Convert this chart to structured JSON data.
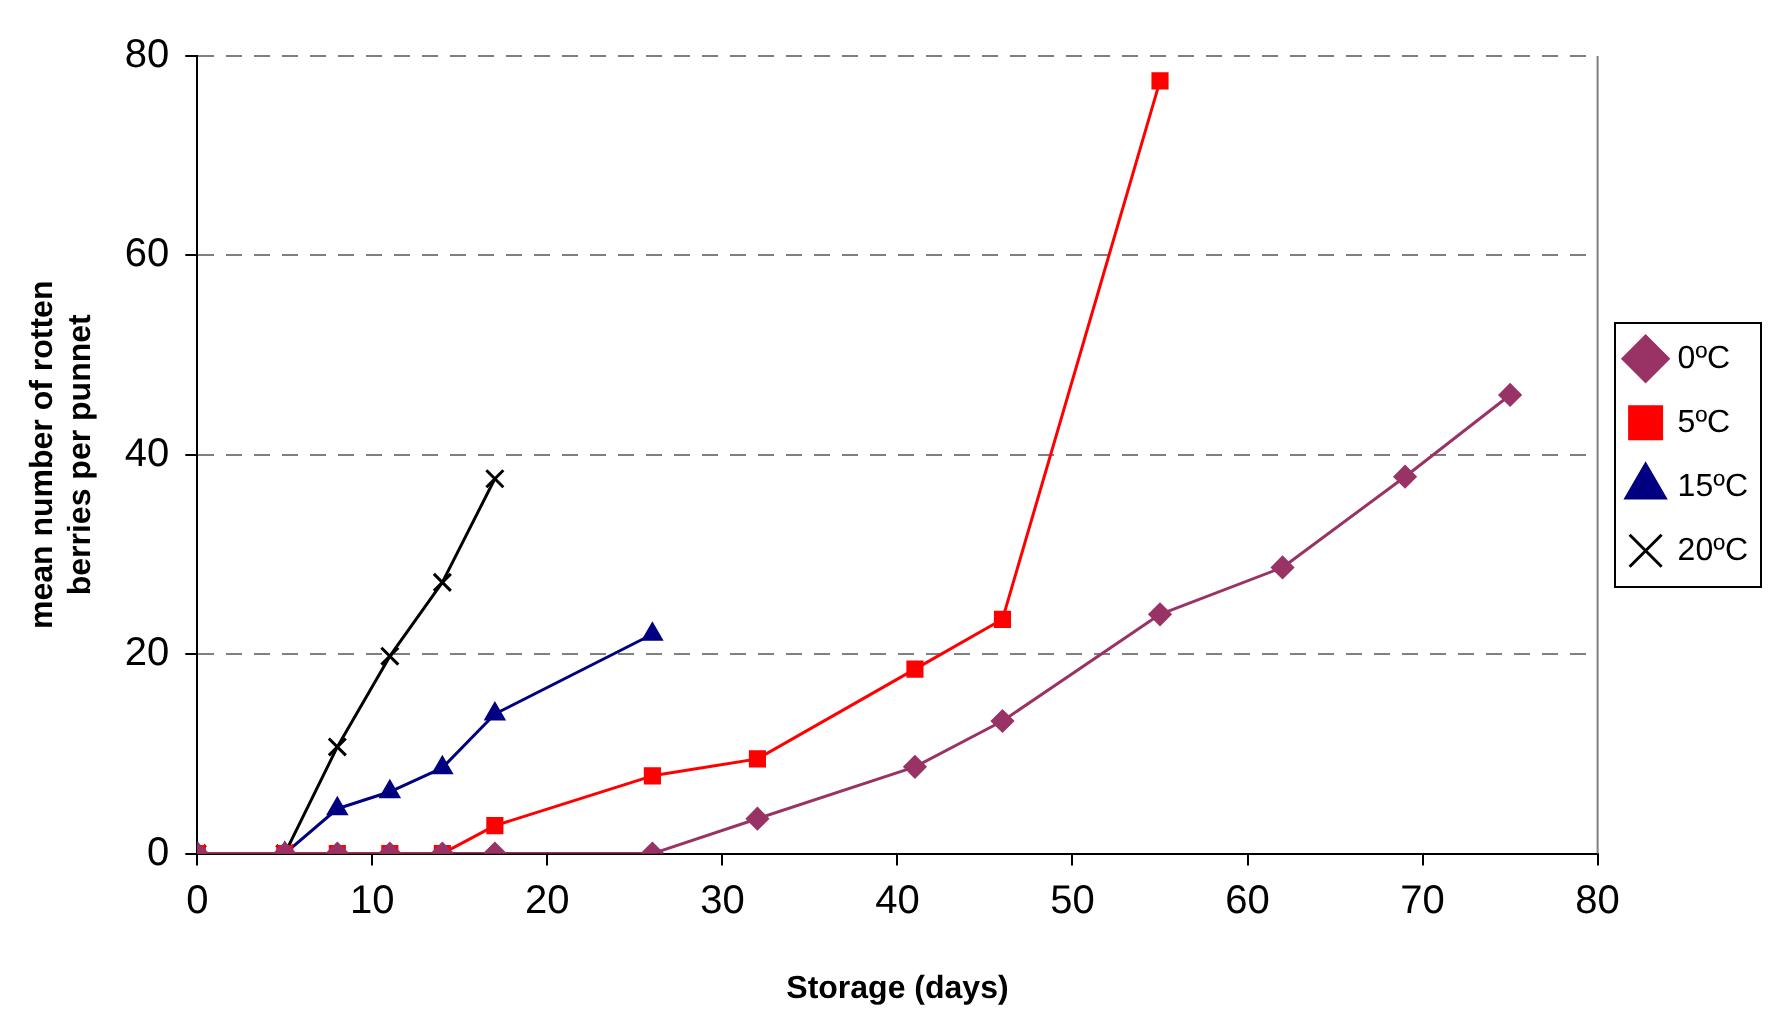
{
  "chart_data": {
    "type": "line",
    "xlabel": "Storage (days)",
    "ylabel": "mean number of rotten berries per punnet",
    "xlim": [
      0,
      80
    ],
    "xticks": [
      0,
      10,
      20,
      30,
      40,
      50,
      60,
      70,
      80
    ],
    "ylim": [
      0,
      80
    ],
    "yticks": [
      0,
      20,
      40,
      60,
      80
    ],
    "grid": "y",
    "legend": "right",
    "series": [
      {
        "name": "0ºC",
        "color": "#993366",
        "marker": "diamond",
        "x": [
          0,
          5,
          8,
          11,
          14,
          17,
          26,
          32,
          41,
          46,
          55,
          62,
          69,
          75
        ],
        "values": [
          0,
          0,
          0,
          0,
          0,
          0,
          0,
          3.5,
          8.7,
          13.3,
          24,
          28.7,
          37.8,
          46
        ]
      },
      {
        "name": "5ºC",
        "color": "#ff0000",
        "marker": "square",
        "x": [
          0,
          5,
          8,
          11,
          14,
          17,
          26,
          32,
          41,
          46,
          55
        ],
        "values": [
          0,
          0,
          0,
          0,
          0,
          2.8,
          7.8,
          9.5,
          18.5,
          23.5,
          77.5
        ]
      },
      {
        "name": "15ºC",
        "color": "#000080",
        "marker": "triangle",
        "x": [
          0,
          5,
          8,
          11,
          14,
          17,
          26
        ],
        "values": [
          0,
          0,
          4.5,
          6.2,
          8.6,
          14,
          22
        ]
      },
      {
        "name": "20ºC",
        "color": "#000000",
        "marker": "cross",
        "x": [
          0,
          5,
          8,
          11,
          14,
          17
        ],
        "values": [
          0,
          0,
          10.7,
          19.8,
          27.2,
          37.6
        ]
      }
    ]
  }
}
